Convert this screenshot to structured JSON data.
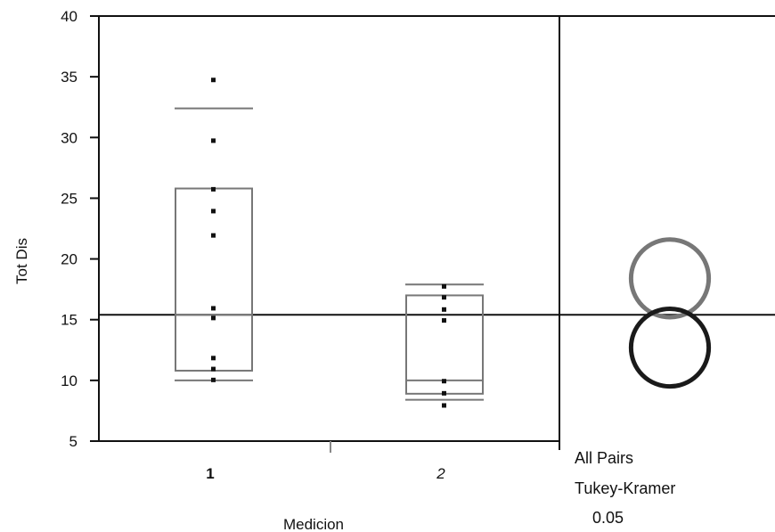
{
  "chart_data": {
    "type": "box",
    "xlabel": "Medicion",
    "ylabel": "Tot Dis",
    "ylim": [
      5,
      40
    ],
    "yticks": [
      5,
      10,
      15,
      20,
      25,
      30,
      35,
      40
    ],
    "categories": [
      "1",
      "2"
    ],
    "grand_mean": 15.4,
    "groups": [
      {
        "category": "1",
        "points": [
          34.7,
          29.7,
          25.7,
          23.9,
          21.9,
          15.9,
          15.1,
          11.8,
          10.9,
          10.0
        ],
        "q1": 10.8,
        "q3": 25.8,
        "whisker_low": 10.0,
        "whisker_high": 32.4,
        "median": 15.4
      },
      {
        "category": "2",
        "points": [
          17.7,
          16.8,
          15.8,
          14.9,
          9.9,
          8.9,
          7.9
        ],
        "q1": 8.9,
        "q3": 17.0,
        "whisker_low": 8.4,
        "whisker_high": 17.9,
        "median": 10.0
      }
    ],
    "comparison_circles": [
      {
        "center": 18.4,
        "radius": 3.2,
        "color": "#777777"
      },
      {
        "center": 12.7,
        "radius": 3.2,
        "color": "#1a1a1a"
      }
    ],
    "annotation": [
      "All Pairs",
      "Tukey-Kramer",
      "0.05"
    ]
  }
}
